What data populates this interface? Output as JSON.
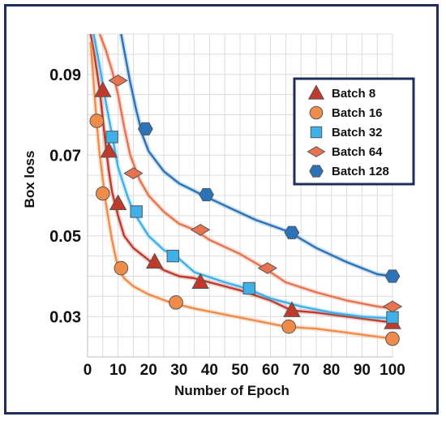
{
  "chart_data": {
    "type": "line",
    "title": "",
    "xlabel": "Number of Epoch",
    "ylabel": "Box loss",
    "xlim": [
      0,
      100
    ],
    "ylim": [
      0.02,
      0.1
    ],
    "x_ticks": [
      "0",
      "10",
      "20",
      "30",
      "40",
      "50",
      "60",
      "70",
      "80",
      "90",
      "100"
    ],
    "y_ticks": [
      {
        "value": 0.09,
        "label": "0.09"
      },
      {
        "value": 0.07,
        "label": "0.07"
      },
      {
        "value": 0.05,
        "label": "0.05"
      },
      {
        "value": 0.03,
        "label": "0.03"
      }
    ],
    "grid": true,
    "legend_position": "top-right",
    "series": [
      {
        "name": "Batch 8",
        "color": "#c0392b",
        "marker": "triangle",
        "x": [
          1,
          2,
          3,
          4,
          5,
          6,
          7,
          8,
          9,
          10,
          12,
          15,
          20,
          25,
          30,
          35,
          40,
          50,
          60,
          67,
          75,
          85,
          95,
          100
        ],
        "y": [
          0.1,
          0.096,
          0.091,
          0.086,
          0.079,
          0.072,
          0.066,
          0.061,
          0.058,
          0.055,
          0.05,
          0.047,
          0.044,
          0.0415,
          0.04,
          0.0395,
          0.0385,
          0.0365,
          0.034,
          0.0315,
          0.031,
          0.03,
          0.029,
          0.0285
        ],
        "marker_x": [
          5,
          7,
          10,
          22,
          37,
          67,
          100
        ],
        "marker_y": [
          0.086,
          0.071,
          0.058,
          0.0435,
          0.0385,
          0.0315,
          0.0285
        ]
      },
      {
        "name": "Batch 16",
        "color": "#f08c4a",
        "marker": "circle",
        "x": [
          1,
          2,
          3,
          4,
          5,
          6,
          8,
          10,
          12,
          15,
          20,
          27,
          35,
          45,
          55,
          65,
          75,
          85,
          95,
          100
        ],
        "y": [
          0.098,
          0.088,
          0.078,
          0.07,
          0.064,
          0.058,
          0.049,
          0.042,
          0.0395,
          0.0375,
          0.0355,
          0.0335,
          0.032,
          0.0305,
          0.029,
          0.0275,
          0.027,
          0.026,
          0.025,
          0.0245
        ],
        "marker_x": [
          3,
          5,
          11,
          29,
          66,
          100
        ],
        "marker_y": [
          0.0785,
          0.0605,
          0.042,
          0.0335,
          0.0275,
          0.0245
        ]
      },
      {
        "name": "Batch 32",
        "color": "#3fb0e8",
        "marker": "square",
        "x": [
          2,
          4,
          6,
          8,
          10,
          13,
          15,
          20,
          25,
          29,
          35,
          45,
          52,
          60,
          70,
          80,
          90,
          100
        ],
        "y": [
          0.1,
          0.092,
          0.083,
          0.075,
          0.067,
          0.06,
          0.056,
          0.05,
          0.0465,
          0.045,
          0.041,
          0.0385,
          0.037,
          0.0345,
          0.0325,
          0.031,
          0.03,
          0.0295
        ],
        "marker_x": [
          8,
          16,
          28,
          53,
          100
        ],
        "marker_y": [
          0.0745,
          0.056,
          0.045,
          0.037,
          0.0298
        ]
      },
      {
        "name": "Batch 64",
        "color": "#e8734f",
        "marker": "diamond",
        "x": [
          4,
          6,
          8,
          10,
          12,
          14,
          17,
          20,
          25,
          30,
          35,
          40,
          50,
          58,
          65,
          75,
          85,
          95,
          100
        ],
        "y": [
          0.1,
          0.096,
          0.091,
          0.085,
          0.077,
          0.07,
          0.064,
          0.06,
          0.056,
          0.053,
          0.0515,
          0.049,
          0.0455,
          0.042,
          0.0385,
          0.036,
          0.034,
          0.0325,
          0.032
        ],
        "marker_x": [
          10,
          15,
          37,
          59,
          100
        ],
        "marker_y": [
          0.0885,
          0.0655,
          0.0515,
          0.042,
          0.0325
        ]
      },
      {
        "name": "Batch 128",
        "color": "#2b73b9",
        "marker": "hexagon",
        "x": [
          11,
          12,
          14,
          16,
          18,
          20,
          25,
          30,
          38,
          45,
          55,
          66,
          75,
          85,
          95,
          100
        ],
        "y": [
          0.1,
          0.096,
          0.088,
          0.081,
          0.075,
          0.071,
          0.066,
          0.063,
          0.06,
          0.0575,
          0.054,
          0.051,
          0.047,
          0.0435,
          0.0405,
          0.04
        ],
        "marker_x": [
          19,
          39,
          67,
          100
        ],
        "marker_y": [
          0.0765,
          0.0602,
          0.0508,
          0.04
        ]
      }
    ]
  }
}
